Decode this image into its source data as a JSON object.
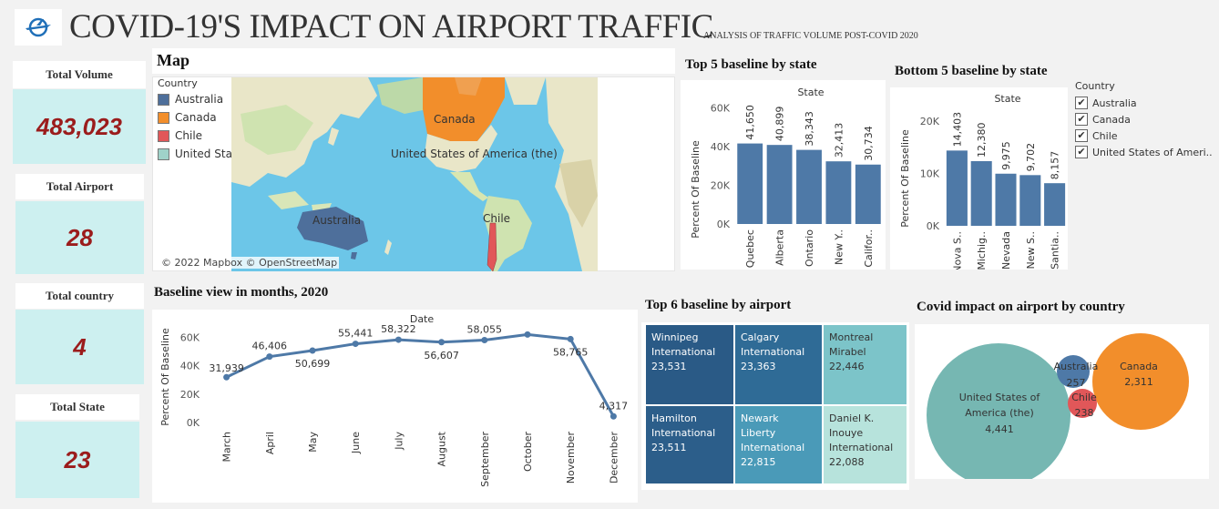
{
  "header": {
    "title": "COVID-19'S IMPACT ON AIRPORT TRAFFIC",
    "subtitle": "ANALYSIS OF TRAFFIC VOLUME POST-COVID 2020"
  },
  "kpis": [
    {
      "label": "Total Volume",
      "value": "483,023"
    },
    {
      "label": "Total Airport",
      "value": "28"
    },
    {
      "label": "Total country",
      "value": "4"
    },
    {
      "label": "Total State",
      "value": "23"
    }
  ],
  "map": {
    "title": "Map",
    "legend_title": "Country",
    "legend": [
      {
        "label": "Australia",
        "color": "#4e6f9b"
      },
      {
        "label": "Canada",
        "color": "#f28e2b"
      },
      {
        "label": "Chile",
        "color": "#e15759"
      },
      {
        "label": "United States of America (the)",
        "color": "#76b7b2"
      }
    ],
    "labels": {
      "canada": "Canada",
      "usa": "United States of America (the)",
      "australia": "Australia",
      "chile": "Chile"
    },
    "credit": "© 2022 Mapbox © OpenStreetMap"
  },
  "top5": {
    "title": "Top 5 baseline by state",
    "header": "State",
    "ylabel": "Percent Of Baseline",
    "ticks": [
      "0K",
      "20K",
      "40K",
      "60K"
    ]
  },
  "bottom5": {
    "title": "Bottom 5 baseline by state",
    "header": "State",
    "ylabel": "Percent Of Baseline",
    "ticks": [
      "0K",
      "10K",
      "20K"
    ]
  },
  "filter": {
    "title": "Country",
    "items": [
      "Australia",
      "Canada",
      "Chile",
      "United States of Ameri.."
    ]
  },
  "line": {
    "title": "Baseline view in months, 2020",
    "header": "Date",
    "ylabel": "Percent Of Baseline",
    "ticks": [
      "0K",
      "20K",
      "40K",
      "60K"
    ]
  },
  "treemap": {
    "title": "Top 6 baseline by airport",
    "cells": [
      {
        "name1": "Winnipeg",
        "name2": "International",
        "name3": "",
        "value": "23,531",
        "color": "#2a5a86"
      },
      {
        "name1": "Calgary",
        "name2": "International",
        "name3": "",
        "value": "23,363",
        "color": "#2f6b96"
      },
      {
        "name1": "Montreal",
        "name2": "Mirabel",
        "name3": "",
        "value": "22,446",
        "color": "#7cc4c9"
      },
      {
        "name1": "Hamilton",
        "name2": "International",
        "name3": "",
        "value": "23,511",
        "color": "#2c5e8a"
      },
      {
        "name1": "Newark Liberty",
        "name2": "International",
        "name3": "",
        "value": "22,815",
        "color": "#4a9ab8"
      },
      {
        "name1": "Daniel K.",
        "name2": "Inouye",
        "name3": "International",
        "value": "22,088",
        "color": "#b7e3dc"
      }
    ]
  },
  "bubbles": {
    "title": "Covid impact on airport by country",
    "items": [
      {
        "name1": "United States of",
        "name2": "America (the)",
        "value": "4,441",
        "color": "#76b7b2"
      },
      {
        "name1": "Canada",
        "name2": "",
        "value": "2,311",
        "color": "#f28e2b"
      },
      {
        "name1": "Australia",
        "name2": "",
        "value": "257",
        "color": "#4e79a7"
      },
      {
        "name1": "Chile",
        "name2": "",
        "value": "238",
        "color": "#e15759"
      }
    ]
  },
  "chart_data": [
    {
      "type": "bar",
      "title": "Top 5 baseline by state",
      "xlabel": "State",
      "ylabel": "Percent Of Baseline",
      "categories": [
        "Quebec",
        "Alberta",
        "Ontario",
        "New Y..",
        "Califor.."
      ],
      "values": [
        41650,
        40899,
        38343,
        32413,
        30734
      ],
      "value_labels": [
        "41,650",
        "40,899",
        "38,343",
        "32,413",
        "30,734"
      ],
      "ylim": [
        0,
        65000
      ],
      "color": "#4e79a7"
    },
    {
      "type": "bar",
      "title": "Bottom 5 baseline by state",
      "xlabel": "State",
      "ylabel": "Percent Of Baseline",
      "categories": [
        "Nova S..",
        "Michig..",
        "Nevada",
        "New S..",
        "Santia.."
      ],
      "values": [
        14403,
        12380,
        9975,
        9702,
        8157
      ],
      "value_labels": [
        "14,403",
        "12,380",
        "9,975",
        "9,702",
        "8,157"
      ],
      "ylim": [
        0,
        23000
      ],
      "color": "#4e79a7"
    },
    {
      "type": "line",
      "title": "Baseline view in months, 2020",
      "xlabel": "Date",
      "ylabel": "Percent Of Baseline",
      "categories": [
        "March",
        "April",
        "May",
        "June",
        "July",
        "August",
        "September",
        "October",
        "November",
        "December"
      ],
      "values": [
        31939,
        46406,
        50699,
        55441,
        58322,
        56607,
        58055,
        62000,
        58765,
        4317
      ],
      "value_labels": [
        "31,939",
        "46,406",
        "50,699",
        "55,441",
        "58,322",
        "56,607",
        "58,055",
        "",
        "58,765",
        "4,317"
      ],
      "ylim": [
        0,
        68000
      ],
      "color": "#4e79a7"
    }
  ]
}
